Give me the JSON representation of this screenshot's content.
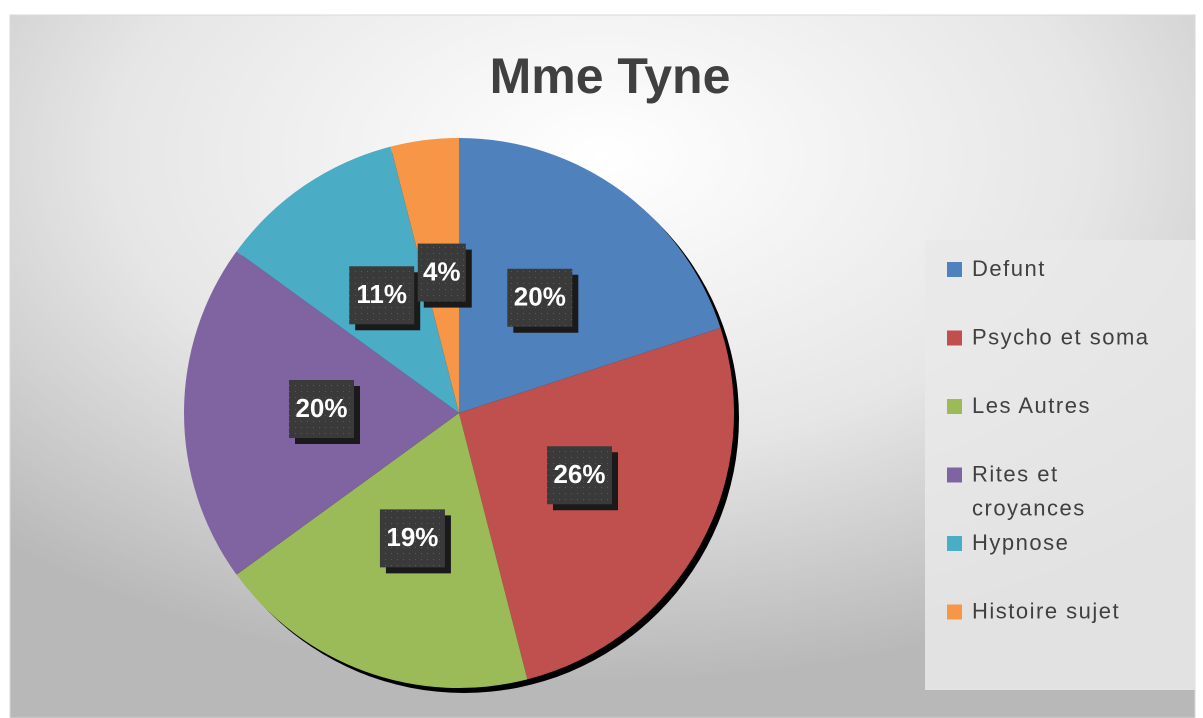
{
  "chart_data": {
    "type": "pie",
    "title": "Mme Tyne",
    "categories": [
      "Defunt",
      "Psycho et soma",
      "Les Autres",
      "Rites et croyances",
      "Hypnose",
      "Histoire sujet"
    ],
    "values": [
      20,
      26,
      19,
      20,
      11,
      4
    ],
    "value_labels": [
      "20%",
      "26%",
      "19%",
      "20%",
      "11%",
      "4%"
    ],
    "colors": [
      "#4f81bd",
      "#c0504d",
      "#9bbb59",
      "#8064a2",
      "#4bacc6",
      "#f79646"
    ],
    "legend": "right"
  }
}
